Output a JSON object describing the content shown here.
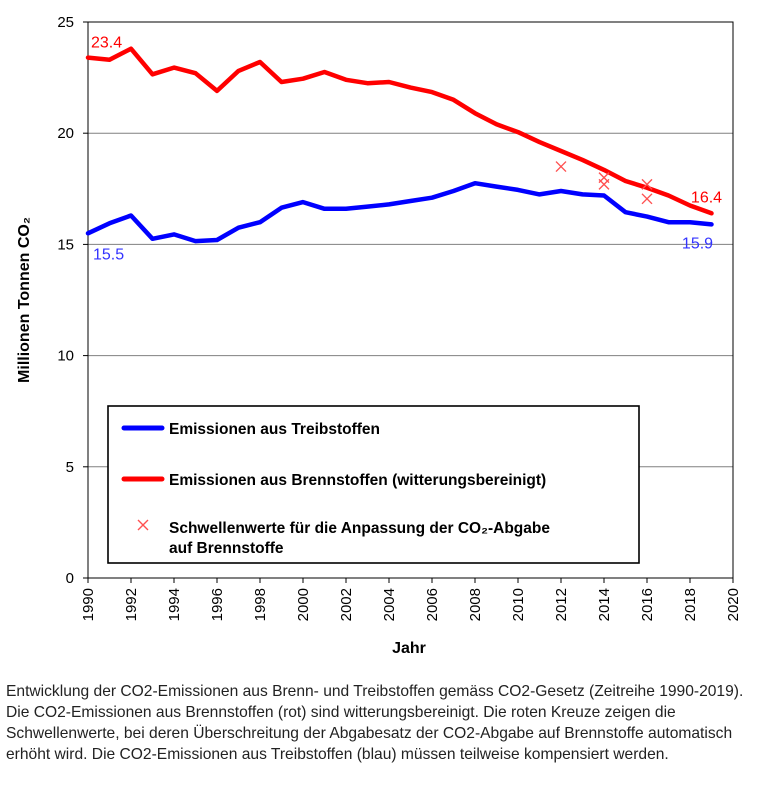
{
  "chart_data": {
    "type": "line",
    "title": "",
    "xlabel": "Jahr",
    "ylabel": "Millionen Tonnen CO₂",
    "xlim": [
      1990,
      2020
    ],
    "ylim": [
      0,
      25
    ],
    "x_ticks": [
      "1990",
      "1992",
      "1994",
      "1996",
      "1998",
      "2000",
      "2002",
      "2004",
      "2006",
      "2008",
      "2010",
      "2012",
      "2014",
      "2016",
      "2018",
      "2020"
    ],
    "y_ticks": [
      "0",
      "5",
      "10",
      "15",
      "20",
      "25"
    ],
    "grid": "horizontal",
    "series": [
      {
        "name": "Emissionen aus Treibstoffen",
        "color": "#0000ff",
        "x": [
          1990,
          1991,
          1992,
          1993,
          1994,
          1995,
          1996,
          1997,
          1998,
          1999,
          2000,
          2001,
          2002,
          2003,
          2004,
          2005,
          2006,
          2007,
          2008,
          2009,
          2010,
          2011,
          2012,
          2013,
          2014,
          2015,
          2016,
          2017,
          2018,
          2019
        ],
        "values": [
          15.5,
          15.95,
          16.3,
          15.25,
          15.45,
          15.15,
          15.2,
          15.75,
          16.0,
          16.65,
          16.9,
          16.6,
          16.6,
          16.7,
          16.8,
          16.95,
          17.1,
          17.4,
          17.75,
          17.6,
          17.45,
          17.25,
          17.4,
          17.25,
          17.2,
          16.45,
          16.25,
          16.0,
          16.0,
          15.9
        ]
      },
      {
        "name": "Emissionen aus Brennstoffen (witterungsbereinigt)",
        "color": "#ff0000",
        "x": [
          1990,
          1991,
          1992,
          1993,
          1994,
          1995,
          1996,
          1997,
          1998,
          1999,
          2000,
          2001,
          2002,
          2003,
          2004,
          2005,
          2006,
          2007,
          2008,
          2009,
          2010,
          2011,
          2012,
          2013,
          2014,
          2015,
          2016,
          2017,
          2018,
          2019
        ],
        "values": [
          23.4,
          23.3,
          23.8,
          22.65,
          22.95,
          22.7,
          21.9,
          22.8,
          23.2,
          22.3,
          22.45,
          22.75,
          22.4,
          22.25,
          22.3,
          22.05,
          21.85,
          21.5,
          20.9,
          20.4,
          20.05,
          19.6,
          19.2,
          18.8,
          18.35,
          17.85,
          17.55,
          17.2,
          16.75,
          16.4
        ]
      },
      {
        "name": "Schwellenwerte für die Anpassung  der CO₂-Abgabe auf Brennstoffe",
        "color": "#ff5050",
        "marker": "x",
        "x": [
          2012,
          2014,
          2014,
          2016,
          2016
        ],
        "values": [
          18.5,
          18.0,
          17.7,
          17.7,
          17.05
        ]
      }
    ],
    "annotations": [
      {
        "text": "23.4",
        "color": "#ff0000",
        "x": 1990,
        "y": 23.4
      },
      {
        "text": "15.5",
        "color": "#3333ff",
        "x": 1990,
        "y": 15.5
      },
      {
        "text": "16.4",
        "color": "#ff0000",
        "x": 2019,
        "y": 16.4
      },
      {
        "text": "15.9",
        "color": "#3333ff",
        "x": 2019,
        "y": 15.9
      }
    ],
    "legend": {
      "placement": "lower-center",
      "items": [
        {
          "label": "Emissionen aus Treibstoffen",
          "color": "#0000ff",
          "kind": "line"
        },
        {
          "label": "Emissionen aus Brennstoffen (witterungsbereinigt)",
          "color": "#ff0000",
          "kind": "line"
        },
        {
          "label_line1": "Schwellenwerte für die Anpassung  der CO₂-Abgabe",
          "label_line2": "auf Brennstoffe",
          "color": "#ff5050",
          "kind": "marker"
        }
      ]
    }
  },
  "caption": "Entwicklung der CO2-Emissionen aus Brenn- und Treibstoffen gemäss CO2-Gesetz (Zeitreihe 1990-2019). Die CO2-Emissionen aus Brennstoffen (rot) sind witterungsbereinigt. Die roten Kreuze zeigen die Schwellenwerte, bei deren Überschreitung der Abgabesatz der CO2-Abgabe auf Brennstoffe automatisch erhöht wird. Die CO2-Emissionen aus Treibstoffen (blau) müssen teilweise kompensiert werden."
}
